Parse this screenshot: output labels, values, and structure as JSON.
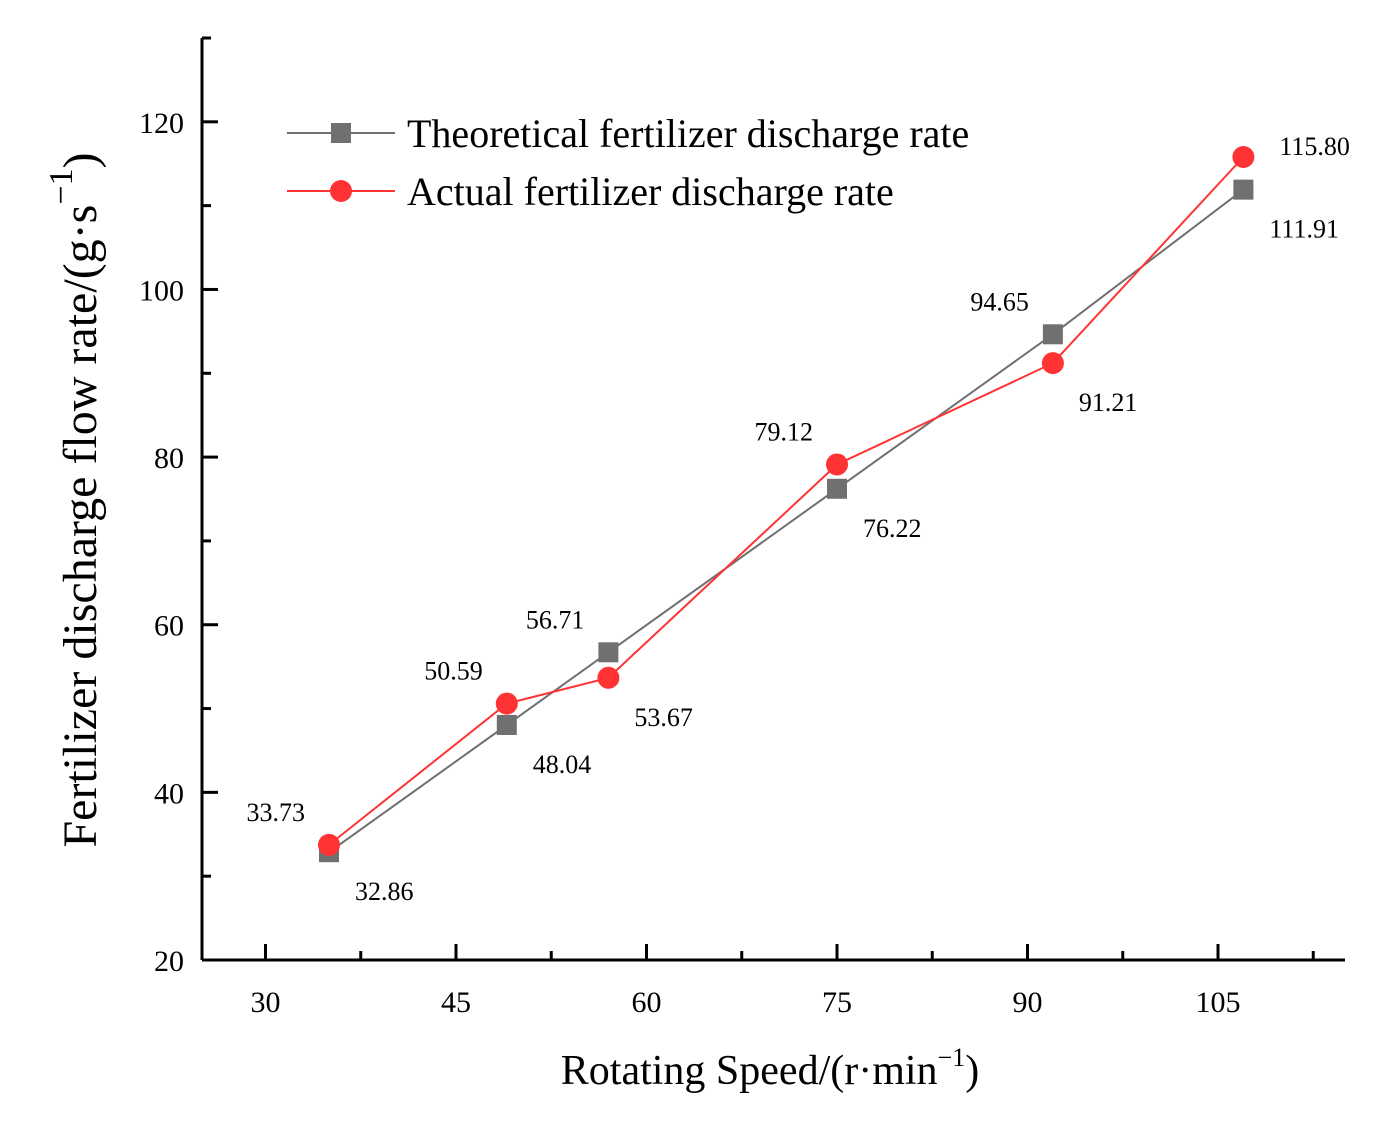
{
  "chart_data": {
    "type": "line",
    "xlabel": "Rotating Speed/(r·min",
    "xlabel_sup": "−1",
    "xlabel_end": ")",
    "ylabel": "Fertilizer discharge flow rate/(g·s",
    "ylabel_sup": "−1",
    "ylabel_end": ")",
    "xlim": [
      25,
      115
    ],
    "ylim": [
      20,
      130
    ],
    "x_ticks": [
      30,
      45,
      60,
      75,
      90,
      105
    ],
    "x_tick_labels": [
      "30",
      "45",
      "60",
      "75",
      "90",
      "105"
    ],
    "x_minor_ticks": [
      37.5,
      52.5,
      67.5,
      82.5,
      97.5,
      112.5
    ],
    "y_ticks": [
      20,
      40,
      60,
      80,
      100,
      120
    ],
    "y_tick_labels": [
      "20",
      "40",
      "60",
      "80",
      "100",
      "120"
    ],
    "y_minor_ticks": [
      30,
      50,
      70,
      90,
      110
    ],
    "legend_position": "top-left",
    "series": [
      {
        "name": "Theoretical fertilizer discharge rate",
        "color": "#707070",
        "marker": "square",
        "x": [
          35,
          49,
          57,
          75,
          92,
          107
        ],
        "values": [
          32.86,
          48.04,
          56.71,
          76.22,
          94.65,
          111.91
        ],
        "labels": [
          "32.86",
          "48.04",
          "56.71",
          "76.22",
          "94.65",
          "111.91"
        ],
        "label_sides": [
          "below-right",
          "below-right",
          "above-left",
          "below-right",
          "above-left",
          "below-right"
        ]
      },
      {
        "name": "Actual fertilizer discharge rate",
        "color": "#ff3333",
        "marker": "circle",
        "x": [
          35,
          49,
          57,
          75,
          92,
          107
        ],
        "values": [
          33.73,
          50.59,
          53.67,
          79.12,
          91.21,
          115.8
        ],
        "labels": [
          "33.73",
          "50.59",
          "53.67",
          "79.12",
          "91.21",
          "115.80"
        ],
        "label_sides": [
          "above-left",
          "above-left",
          "below-right",
          "above-left",
          "below-right",
          "right"
        ]
      }
    ]
  }
}
